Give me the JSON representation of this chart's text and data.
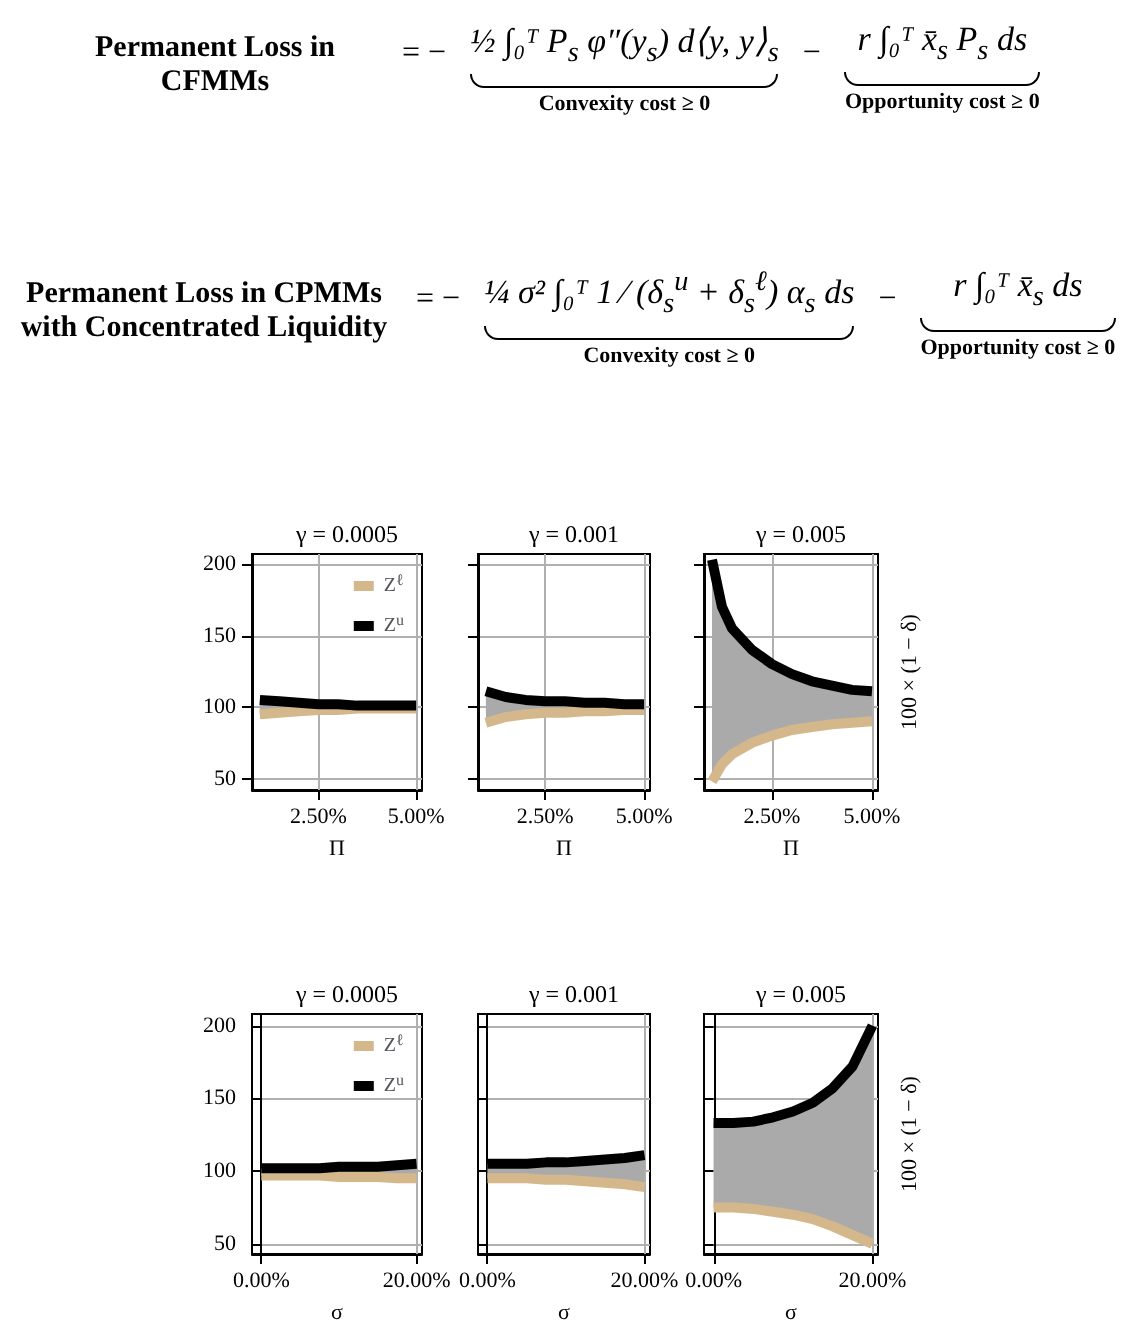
{
  "chart_data": [
    {
      "type": "other",
      "annotations": [
        "Permanent Loss in CFMMs",
        "= −",
        "½ ∫₀ᵀ P$_{s}$ φ″(y$_{s}$) d⟨y, y⟩$_{s}$",
        "−",
        "r ∫₀ᵀ x̄$_{s}$ P$_{s}$ ds",
        "Convexity cost ≥ 0",
        "Opportunity cost ≥ 0",
        "Permanent Loss in CPMMs with Concentrated Liquidity",
        "= −",
        "¼ σ² ∫₀ᵀ 1 ⁄ (δ$_{s}$$^{u}$ + δ$_{s}$$^{ℓ}$) α$_{s}$ ds",
        "−",
        "r ∫₀ᵀ x̄$_{s}$ ds",
        "Convexity cost ≥ 0",
        "Opportunity cost ≥ 0"
      ]
    },
    {
      "type": "line",
      "title": "γ = 0.0005",
      "xlabel": "Π",
      "x": [
        1,
        1.5,
        2,
        2.5,
        3,
        3.5,
        4,
        4.5,
        5
      ],
      "xlim": [
        0.8,
        5.15
      ],
      "xticks": [
        {
          "value": 2.5,
          "label": "2.50%"
        },
        {
          "value": 5,
          "label": "5.00%"
        }
      ],
      "ylim": [
        42,
        207
      ],
      "yticks": [
        50,
        100,
        150,
        200
      ],
      "grid": true,
      "legend": "top right",
      "marker": "none",
      "series": [
        {
          "name": "Z$^{ℓ}$",
          "color": "#d4b88c",
          "values": [
            95,
            96,
            97,
            98,
            98,
            99,
            99,
            99,
            99
          ]
        },
        {
          "name": "Z$^{u}$",
          "color": "#000000",
          "values": [
            105,
            104,
            103,
            102,
            102,
            101,
            101,
            101,
            101
          ],
          "lower": [
            95,
            96,
            97,
            98,
            98,
            99,
            99,
            99,
            99
          ],
          "upper": [
            105,
            104,
            103,
            102,
            102,
            101,
            101,
            101,
            101
          ]
        }
      ]
    },
    {
      "type": "line",
      "title": "γ = 0.001",
      "xlabel": "Π",
      "x": [
        1,
        1.5,
        2,
        2.5,
        3,
        3.5,
        4,
        4.5,
        5
      ],
      "xlim": [
        0.8,
        5.15
      ],
      "xticks": [
        {
          "value": 2.5,
          "label": "2.50%"
        },
        {
          "value": 5,
          "label": "5.00%"
        }
      ],
      "ylim": [
        42,
        207
      ],
      "yticks": [
        50,
        100,
        150,
        200
      ],
      "grid": true,
      "tick_labels": "x",
      "marker": "none",
      "series": [
        {
          "color": "#d4b88c",
          "values": [
            89,
            93,
            95,
            96,
            96,
            97,
            97,
            98,
            98
          ]
        },
        {
          "color": "#000000",
          "values": [
            111,
            107,
            105,
            104,
            104,
            103,
            103,
            102,
            102
          ],
          "lower": [
            89,
            93,
            95,
            96,
            96,
            97,
            97,
            98,
            98
          ],
          "upper": [
            111,
            107,
            105,
            104,
            104,
            103,
            103,
            102,
            102
          ]
        }
      ]
    },
    {
      "type": "line",
      "title": "γ = 0.005",
      "xlabel": "Π",
      "ylabel": "100 × (1 − δ)",
      "x": [
        1,
        1.25,
        1.5,
        2,
        2.5,
        3,
        3.5,
        4,
        4.5,
        5
      ],
      "xlim": [
        0.8,
        5.15
      ],
      "xticks": [
        {
          "value": 2.5,
          "label": "2.50%"
        },
        {
          "value": 5,
          "label": "5.00%"
        }
      ],
      "ylim": [
        42,
        207
      ],
      "yticks": [
        50,
        100,
        150,
        200
      ],
      "grid": true,
      "tick_labels": "x",
      "marker": "none",
      "series": [
        {
          "color": "#d4b88c",
          "values": [
            48,
            60,
            67,
            75,
            80,
            84,
            86,
            88,
            89,
            90
          ]
        },
        {
          "color": "#000000",
          "values": [
            203,
            170,
            155,
            140,
            130,
            123,
            118,
            115,
            112,
            111
          ],
          "lower": [
            48,
            60,
            67,
            75,
            80,
            84,
            86,
            88,
            89,
            90
          ],
          "upper": [
            203,
            170,
            155,
            140,
            130,
            123,
            118,
            115,
            112,
            111
          ]
        }
      ]
    },
    {
      "type": "line",
      "title": "γ = 0.0005",
      "xlabel": "σ",
      "x": [
        0,
        2.5,
        5,
        7.5,
        10,
        12.5,
        15,
        17.5,
        20
      ],
      "xlim": [
        -1.2,
        20.7
      ],
      "xticks": [
        {
          "value": 0,
          "label": "0.00%"
        },
        {
          "value": 20,
          "label": "20.00%"
        }
      ],
      "ylim": [
        43,
        208
      ],
      "yticks": [
        50,
        100,
        150,
        200
      ],
      "grid": true,
      "legend": "top right",
      "marker": "none",
      "series": [
        {
          "name": "Z$^{ℓ}$",
          "color": "#d4b88c",
          "values": [
            97,
            97,
            97,
            97,
            96,
            96,
            96,
            95,
            95
          ]
        },
        {
          "name": "Z$^{u}$",
          "color": "#000000",
          "values": [
            102,
            102,
            102,
            102,
            103,
            103,
            103,
            104,
            105
          ],
          "lower": [
            97,
            97,
            97,
            97,
            96,
            96,
            96,
            95,
            95
          ],
          "upper": [
            102,
            102,
            102,
            102,
            103,
            103,
            103,
            104,
            105
          ]
        }
      ]
    },
    {
      "type": "line",
      "title": "γ = 0.001",
      "xlabel": "σ",
      "x": [
        0,
        2.5,
        5,
        7.5,
        10,
        12.5,
        15,
        17.5,
        20
      ],
      "xlim": [
        -1.2,
        20.7
      ],
      "xticks": [
        {
          "value": 0,
          "label": "0.00%"
        },
        {
          "value": 20,
          "label": "20.00%"
        }
      ],
      "ylim": [
        43,
        208
      ],
      "yticks": [
        50,
        100,
        150,
        200
      ],
      "grid": true,
      "tick_labels": "x",
      "marker": "none",
      "series": [
        {
          "color": "#d4b88c",
          "values": [
            95,
            95,
            95,
            94,
            94,
            93,
            92,
            91,
            89
          ]
        },
        {
          "color": "#000000",
          "values": [
            105,
            105,
            105,
            106,
            106,
            107,
            108,
            109,
            111
          ],
          "lower": [
            95,
            95,
            95,
            94,
            94,
            93,
            92,
            91,
            89
          ],
          "upper": [
            105,
            105,
            105,
            106,
            106,
            107,
            108,
            109,
            111
          ]
        }
      ]
    },
    {
      "type": "line",
      "title": "γ = 0.005",
      "xlabel": "σ",
      "ylabel": "100 × (1 − δ)",
      "x": [
        0,
        2.5,
        5,
        7.5,
        10,
        12.5,
        15,
        17.5,
        20
      ],
      "xlim": [
        -1.2,
        20.7
      ],
      "xticks": [
        {
          "value": 0,
          "label": "0.00%"
        },
        {
          "value": 20,
          "label": "20.00%"
        }
      ],
      "ylim": [
        43,
        208
      ],
      "yticks": [
        50,
        100,
        150,
        200
      ],
      "grid": true,
      "tick_labels": "x",
      "marker": "none",
      "series": [
        {
          "color": "#d4b88c",
          "values": [
            75,
            75,
            74,
            72,
            70,
            67,
            62,
            56,
            50
          ]
        },
        {
          "color": "#000000",
          "values": [
            133,
            133,
            134,
            137,
            141,
            147,
            157,
            172,
            200
          ],
          "lower": [
            75,
            75,
            74,
            72,
            70,
            67,
            62,
            56,
            50
          ],
          "upper": [
            133,
            133,
            134,
            137,
            141,
            147,
            157,
            172,
            200
          ]
        }
      ]
    }
  ]
}
